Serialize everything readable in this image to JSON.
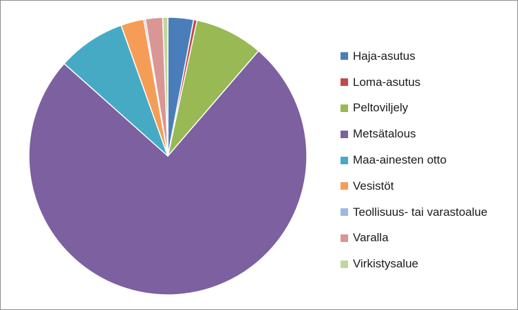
{
  "chart_data": {
    "type": "pie",
    "title": "",
    "categories": [
      "Haja-asutus",
      "Loma-asutus",
      "Peltoviljely",
      "Metsätalous",
      "Maa-ainesten otto",
      "Vesistöt",
      "Teollisuus- tai varastoalue",
      "Varalla",
      "Virkistysalue"
    ],
    "values": [
      3.0,
      0.4,
      8.0,
      75.8,
      8.0,
      2.7,
      0.2,
      2.0,
      0.6
    ],
    "colors": [
      "#4a7ebb",
      "#be4b48",
      "#98b954",
      "#7d60a0",
      "#46aac5",
      "#f59d56",
      "#9cb9e0",
      "#d99694",
      "#c2d69b"
    ],
    "start_angle_deg": 0,
    "direction": "clockwise",
    "legend_position": "right"
  }
}
